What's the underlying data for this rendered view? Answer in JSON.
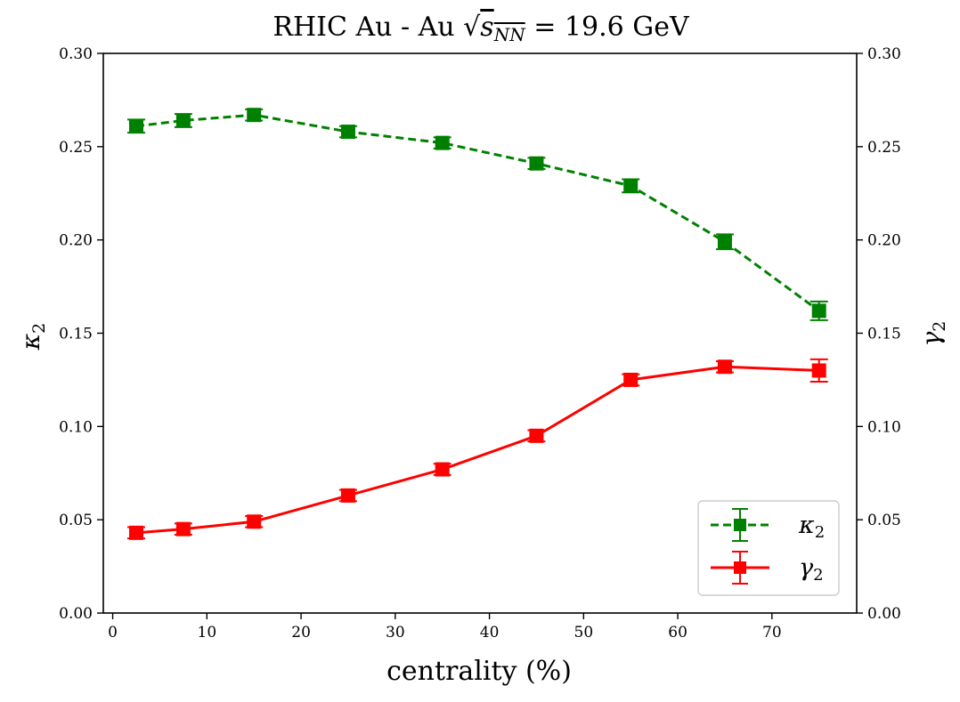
{
  "chart_data": {
    "type": "line",
    "title_main": "RHIC Au - Au ",
    "title_sqrt": "√",
    "title_s": "s",
    "title_sub": "NN",
    "title_rest": " = 19.6 GeV",
    "xlabel": "centrality (%)",
    "ylabel_left_sym": "κ",
    "ylabel_left_sub": "2",
    "ylabel_right_sym": "γ",
    "ylabel_right_sub": "2",
    "xlim": [
      -1,
      79
    ],
    "ylim": [
      0.0,
      0.3
    ],
    "xticks": [
      0,
      10,
      20,
      30,
      40,
      50,
      60,
      70
    ],
    "yticks": [
      0.0,
      0.05,
      0.1,
      0.15,
      0.2,
      0.25,
      0.3
    ],
    "ytick_labels": [
      "0.00",
      "0.05",
      "0.10",
      "0.15",
      "0.20",
      "0.25",
      "0.30"
    ],
    "legend_position": "bottom-right",
    "series": [
      {
        "name": "kappa2",
        "legend_sym": "κ",
        "legend_sub": "2",
        "color": "#008000",
        "dashed": true,
        "x": [
          2.5,
          7.5,
          15,
          25,
          35,
          45,
          55,
          65,
          75
        ],
        "y": [
          0.261,
          0.264,
          0.267,
          0.258,
          0.252,
          0.241,
          0.229,
          0.199,
          0.162
        ],
        "err": [
          0.0035,
          0.0035,
          0.003,
          0.003,
          0.003,
          0.003,
          0.0035,
          0.004,
          0.005
        ]
      },
      {
        "name": "gamma2",
        "legend_sym": "γ",
        "legend_sub": "2",
        "color": "#ff0000",
        "dashed": false,
        "x": [
          2.5,
          7.5,
          15,
          25,
          35,
          45,
          55,
          65,
          75
        ],
        "y": [
          0.043,
          0.045,
          0.049,
          0.063,
          0.077,
          0.095,
          0.125,
          0.132,
          0.13
        ],
        "err": [
          0.003,
          0.003,
          0.003,
          0.003,
          0.003,
          0.003,
          0.003,
          0.003,
          0.006
        ]
      }
    ]
  }
}
